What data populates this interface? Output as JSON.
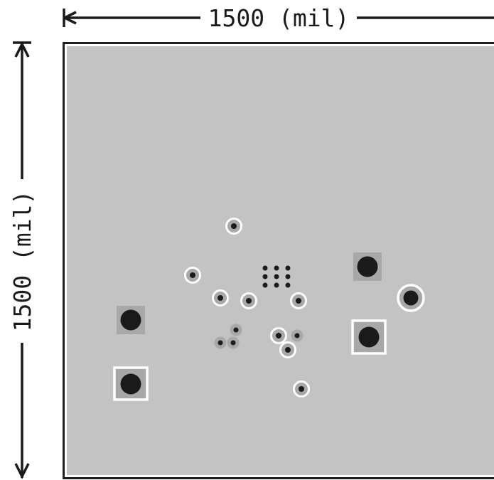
{
  "dimensions": {
    "width_label": "1500 (mil)",
    "height_label": "1500 (mil)"
  },
  "colors": {
    "board_fill": "#c3c3c3",
    "board_outline": "#1e1e1e",
    "board_inner_border": "#ffffff",
    "drill": "#1a1a1a",
    "pad_copper": "#a8a8a8",
    "ring": "#ffffff",
    "dimension_line": "#1a1a1a"
  },
  "components": {
    "square_pads": [
      {
        "name": "square-pad-left-upper",
        "outlined": false
      },
      {
        "name": "square-pad-left-lower",
        "outlined": true
      },
      {
        "name": "square-pad-right-upper",
        "outlined": false
      },
      {
        "name": "square-pad-right-lower",
        "outlined": true
      }
    ],
    "via_grid": {
      "rows": 3,
      "cols": 3
    }
  }
}
